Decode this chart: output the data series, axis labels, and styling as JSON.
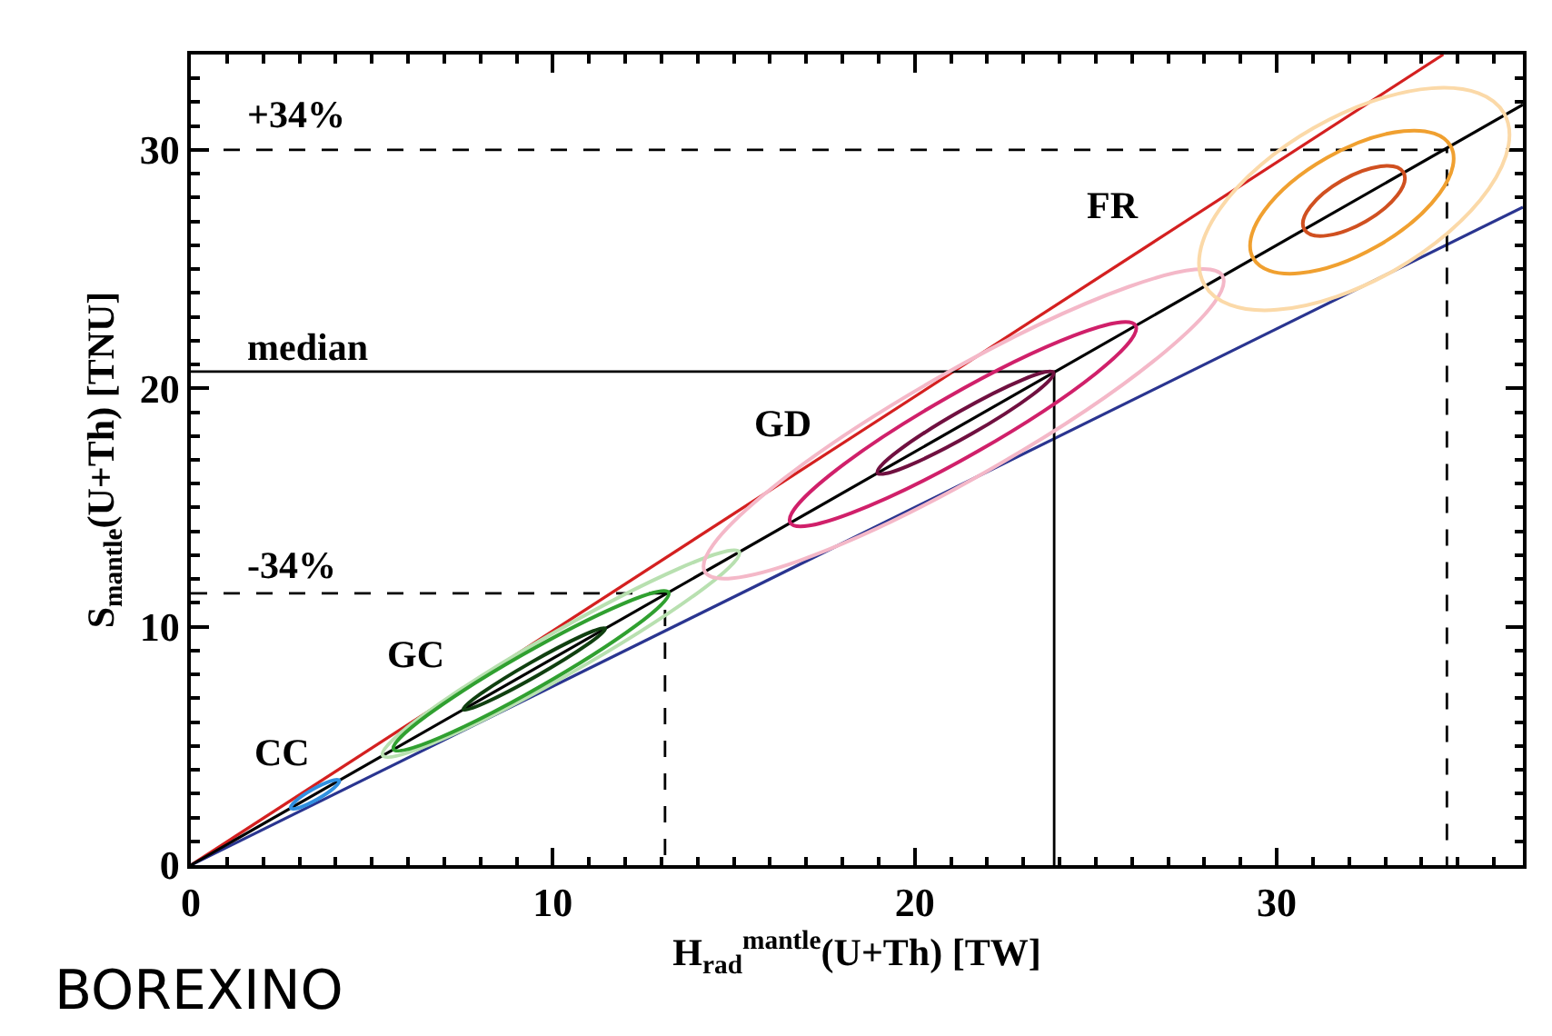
{
  "chart_data": {
    "type": "line",
    "xlabel": "H$_{rad}$$^{mantle}$(U+Th) [TW]",
    "ylabel": "S$_{mantle}$(U+Th) [TNU]",
    "xlim": [
      0,
      36.8
    ],
    "xticks": [
      0,
      10,
      20,
      30
    ],
    "ylim": [
      0,
      34
    ],
    "yticks": [
      0,
      10,
      20,
      30
    ],
    "grid": false,
    "marker": "none",
    "series": [
      {
        "color": "#d42020",
        "x": [
          0,
          34.6
        ],
        "values": [
          0,
          34
        ]
      },
      {
        "color": "#2a3590",
        "x": [
          0,
          36.8
        ],
        "values": [
          0,
          27.6
        ]
      },
      {
        "color": "#000000",
        "x": [
          0,
          36.8
        ],
        "values": [
          0,
          31.9
        ]
      },
      {
        "color": "#000000",
        "x": [
          0,
          23.85,
          23.85
        ],
        "values": [
          20.7,
          20.7,
          0
        ]
      },
      {
        "color": "#000000",
        "line_style": "dashed",
        "x": [
          0,
          13.1,
          13.1
        ],
        "values": [
          11.4,
          11.4,
          0
        ]
      },
      {
        "color": "#000000",
        "line_style": "dashed",
        "x": [
          0,
          34.7,
          34.7
        ],
        "values": [
          30,
          30,
          0
        ]
      }
    ],
    "annotations": [
      "+34%",
      "median",
      "-34%",
      "CC",
      "GC",
      "GD",
      "FR",
      "BOREXINO"
    ]
  }
}
